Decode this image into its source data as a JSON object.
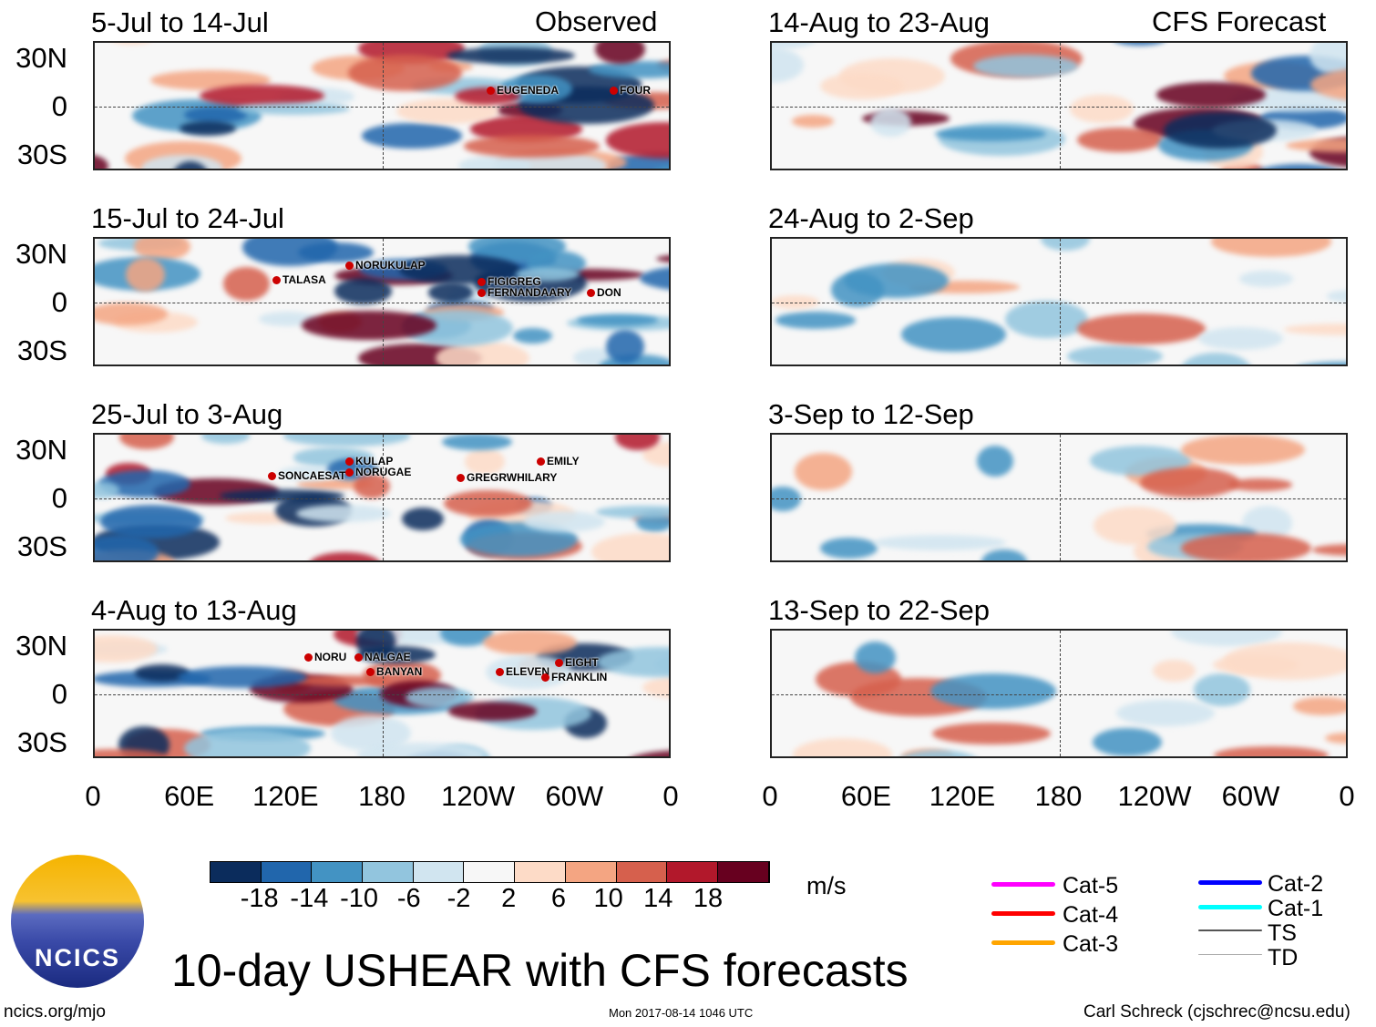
{
  "header": {
    "left": "Observed",
    "right": "CFS Forecast"
  },
  "observed": [
    {
      "title": "5-Jul to 14-Jul",
      "storms": [
        "EUGENEDA",
        "FOUR"
      ]
    },
    {
      "title": "15-Jul to 24-Jul",
      "storms": [
        "TALASA",
        "NORUKULAP",
        "FIGIGREG",
        "FERNANDAARY",
        "DON"
      ]
    },
    {
      "title": "25-Jul to 3-Aug",
      "storms": [
        "SONCAESAT",
        "KULAP",
        "NORUGAE",
        "GREGRWHILARY",
        "EMILY"
      ]
    },
    {
      "title": "4-Aug to 13-Aug",
      "storms": [
        "NORU",
        "NALGAE",
        "BANYAN",
        "ELEVEN",
        "EIGHT",
        "FRANKLIN"
      ]
    }
  ],
  "forecast": [
    {
      "title": "14-Aug to 23-Aug"
    },
    {
      "title": "24-Aug to 2-Sep"
    },
    {
      "title": "3-Sep to 12-Sep"
    },
    {
      "title": "13-Sep to 22-Sep"
    }
  ],
  "lat_labels": [
    "30N",
    "0",
    "30S"
  ],
  "lon_labels": [
    "0",
    "60E",
    "120E",
    "180",
    "120W",
    "60W",
    "0"
  ],
  "colorbar": {
    "colors": [
      "#0b2c5c",
      "#2166ac",
      "#4393c3",
      "#92c5de",
      "#d1e5f0",
      "#f7f7f7",
      "#fddbc7",
      "#f4a582",
      "#d6604d",
      "#b2182b",
      "#67001f"
    ],
    "labels": [
      "-18",
      "-14",
      "-10",
      "-6",
      "-2",
      "2",
      "6",
      "10",
      "14",
      "18"
    ],
    "units": "m/s"
  },
  "legend": [
    {
      "label": "Cat-5",
      "color": "#ff00ff"
    },
    {
      "label": "Cat-4",
      "color": "#ff0000"
    },
    {
      "label": "Cat-3",
      "color": "#ffa500"
    },
    {
      "label": "Cat-2",
      "color": "#0000ff"
    },
    {
      "label": "Cat-1",
      "color": "#00ffff"
    },
    {
      "label": "TS",
      "color": "#555555"
    },
    {
      "label": "TD",
      "color": "#aaaaaa"
    }
  ],
  "logo": "NCICS",
  "title": "10-day USHEAR with CFS forecasts",
  "footer": {
    "url": "ncics.org/mjo",
    "timestamp": "Mon 2017-08-14 1046 UTC",
    "author": "Carl Schreck (cjschrec@ncsu.edu)"
  }
}
